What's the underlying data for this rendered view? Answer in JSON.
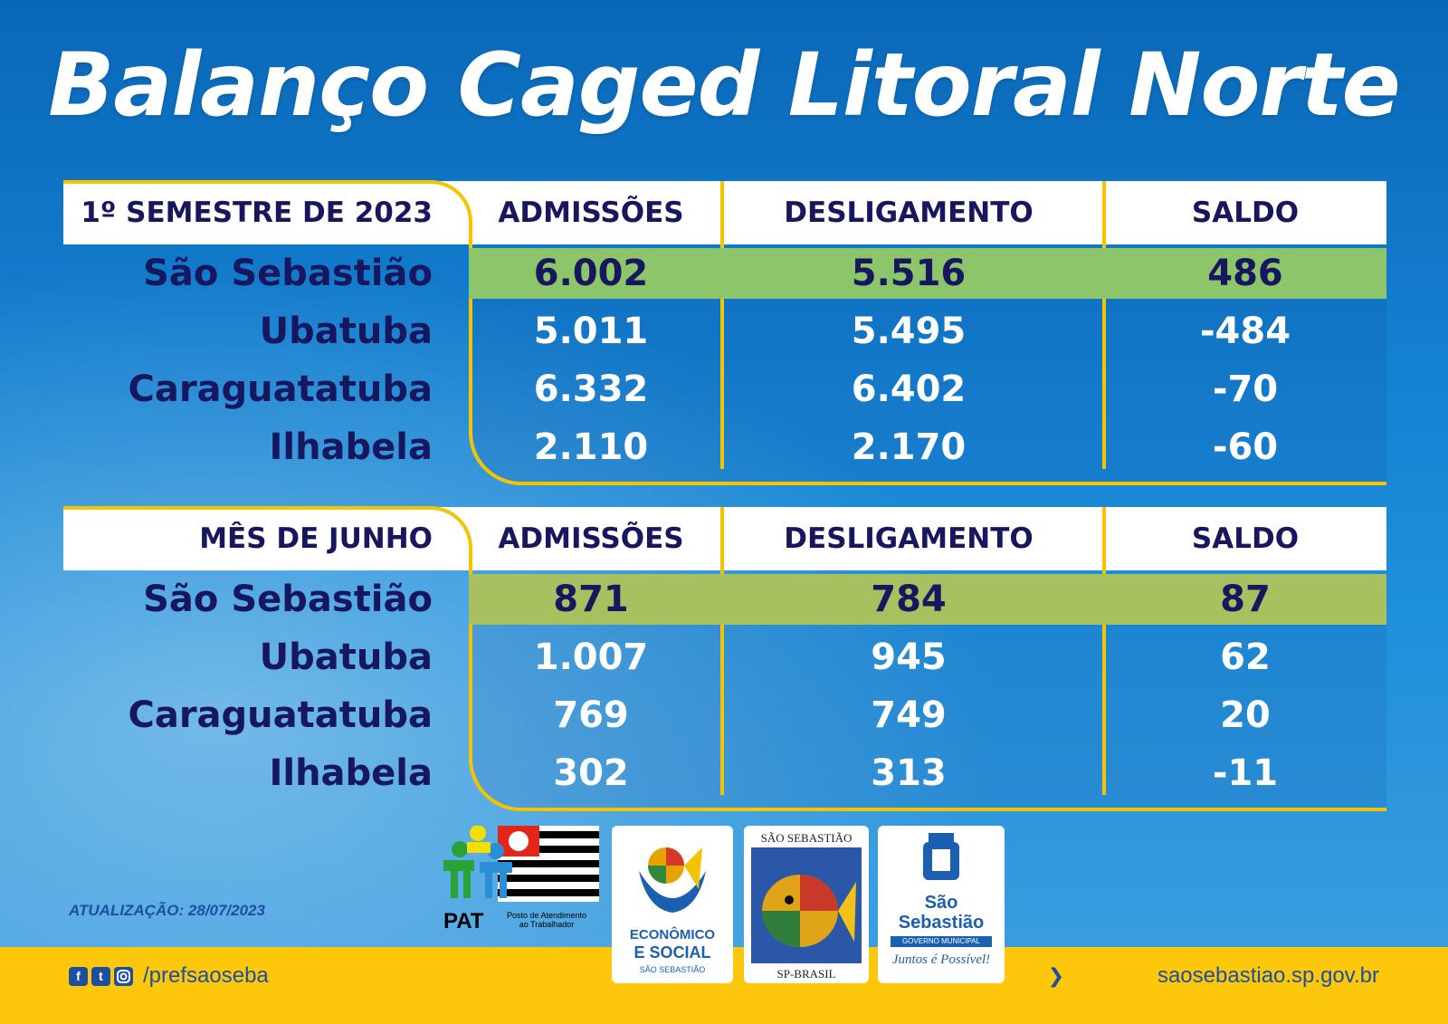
{
  "title": "Balanço Caged Litoral Norte",
  "columns": [
    "ADMISSÕES",
    "DESLIGAMENTO",
    "SALDO"
  ],
  "sections": [
    {
      "label": "1º SEMESTRE DE 2023",
      "rows": [
        {
          "city": "São Sebastião",
          "admissoes": "6.002",
          "desligamento": "5.516",
          "saldo": "486",
          "highlight": true
        },
        {
          "city": "Ubatuba",
          "admissoes": "5.011",
          "desligamento": "5.495",
          "saldo": "-484"
        },
        {
          "city": "Caraguatatuba",
          "admissoes": "6.332",
          "desligamento": "6.402",
          "saldo": "-70"
        },
        {
          "city": "Ilhabela",
          "admissoes": "2.110",
          "desligamento": "2.170",
          "saldo": "-60"
        }
      ]
    },
    {
      "label": "MÊS DE JUNHO",
      "rows": [
        {
          "city": "São Sebastião",
          "admissoes": "871",
          "desligamento": "784",
          "saldo": "87",
          "highlight": true
        },
        {
          "city": "Ubatuba",
          "admissoes": "1.007",
          "desligamento": "945",
          "saldo": "62"
        },
        {
          "city": "Caraguatatuba",
          "admissoes": "769",
          "desligamento": "749",
          "saldo": "20"
        },
        {
          "city": "Ilhabela",
          "admissoes": "302",
          "desligamento": "313",
          "saldo": "-11"
        }
      ]
    }
  ],
  "update": "ATUALIZAÇÃO: 28/07/2023",
  "footer": {
    "handle": "/prefsaoseba",
    "site": "saosebastiao.sp.gov.br",
    "social_icons": [
      "facebook-icon",
      "twitter-icon",
      "instagram-icon"
    ]
  },
  "logos": {
    "pat": {
      "name": "PAT",
      "subtitle": "Posto de Atendimento ao Trabalhador"
    },
    "economico": {
      "line1": "ECONÔMICO",
      "line2": "E SOCIAL",
      "line3": "SÃO SEBASTIÃO"
    },
    "fish": {
      "top": "SÃO SEBASTIÃO",
      "bottom": "SP-BRASIL"
    },
    "prefeitura": {
      "line1": "São",
      "line2": "Sebastião",
      "line3": "GOVERNO MUNICIPAL",
      "slogan": "Juntos é Possível!"
    }
  },
  "colors": {
    "navy": "#16175e",
    "yellow": "#f5c400",
    "highlight_green": "#8cc56a",
    "highlight_olive": "#a9c060",
    "blue": "#1d4fa0"
  }
}
